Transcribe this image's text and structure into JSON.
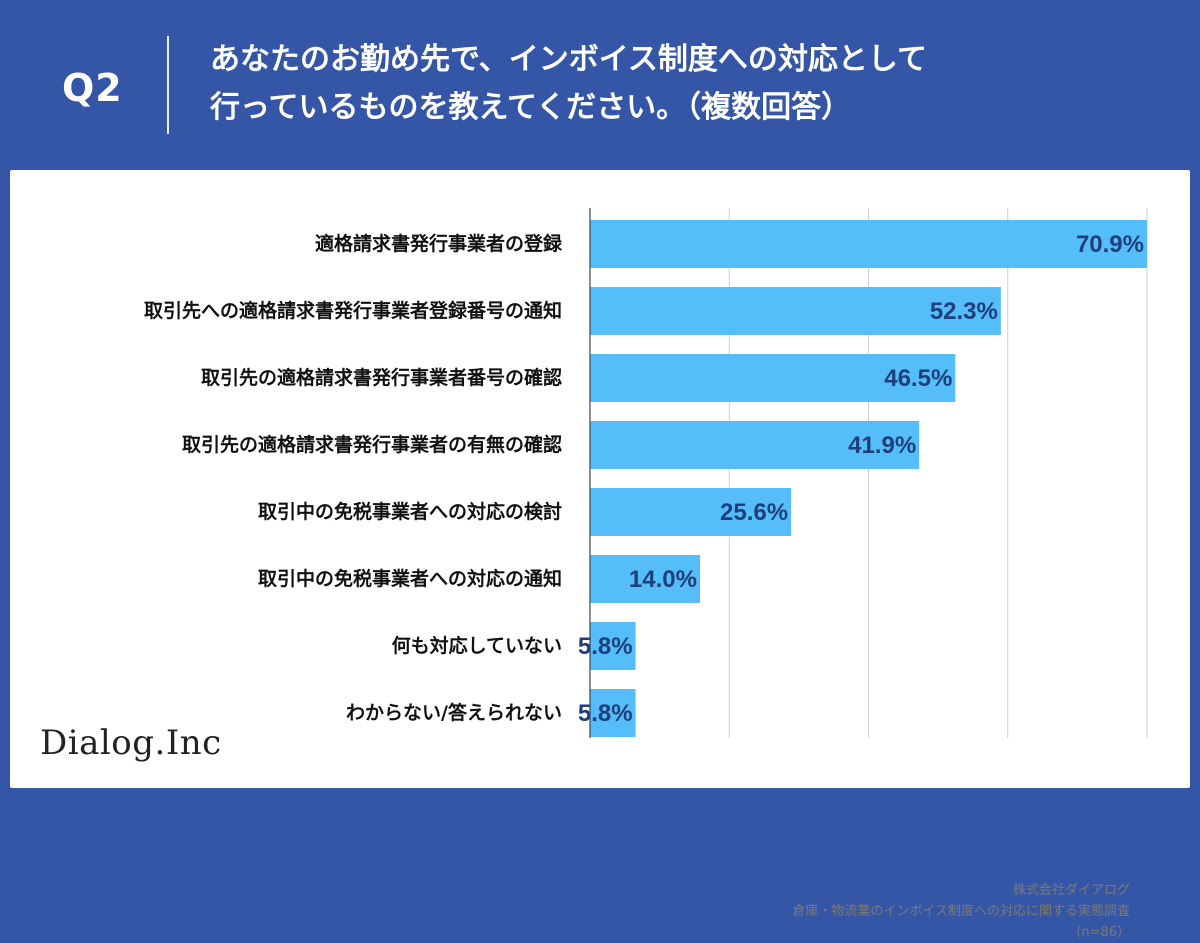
{
  "header": {
    "q_label": "Q2",
    "question_line1": "あなたのお勤め先で、インボイス制度への対応として",
    "question_line2": "行っているものを教えてください。（複数回答）"
  },
  "chart_data": {
    "type": "bar",
    "orientation": "horizontal",
    "categories": [
      "適格請求書発行事業者の登録",
      "取引先への適格請求書発行事業者登録番号の通知",
      "取引先の適格請求書発行事業者番号の確認",
      "取引先の適格請求書発行事業者の有無の確認",
      "取引中の免税事業者への対応の検討",
      "取引中の免税事業者への対応の通知",
      "何も対応していない",
      "わからない/答えられない"
    ],
    "values": [
      70.9,
      52.3,
      46.5,
      41.9,
      25.6,
      14.0,
      5.8,
      5.8
    ],
    "value_labels": [
      "70.9%",
      "52.3%",
      "46.5%",
      "41.9%",
      "25.6%",
      "14.0%",
      "5.8%",
      "5.8%"
    ],
    "xlim": [
      0,
      70.9
    ],
    "grid": true,
    "bar_color": "#55bdfa",
    "label_color": "#1f3f7a"
  },
  "footer": {
    "logo": "Dialog.Inc",
    "source_company": "株式会社ダイアログ",
    "source_survey": "倉庫・物流業のインボイス制度への対応に関する実態調査",
    "sample_size": "（n=86）"
  },
  "colors": {
    "background": "#3556a6",
    "panel": "#ffffff",
    "bar": "#55bdfa",
    "value_text": "#1f3f7a",
    "grid": "#cfcfcf"
  }
}
